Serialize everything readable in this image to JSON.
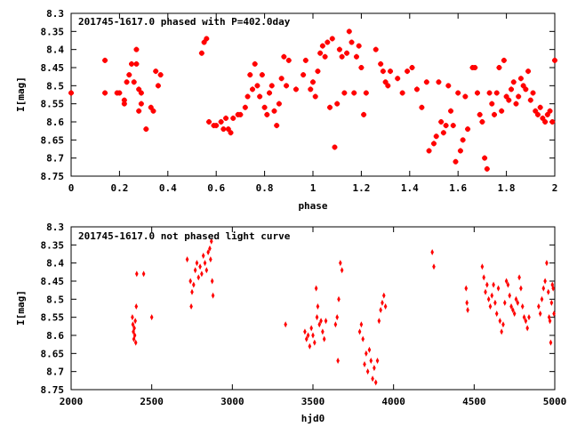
{
  "chart_data": [
    {
      "type": "scatter",
      "title": "201745-1617.0 phased with P=402.0day",
      "xlabel": "phase",
      "ylabel": "I[mag]",
      "xlim": [
        0,
        2
      ],
      "ylim": [
        8.75,
        8.3
      ],
      "y_inverted": true,
      "xticks": [
        "0",
        "0.2",
        "0.4",
        "0.6",
        "0.8",
        "1",
        "1.2",
        "1.4",
        "1.6",
        "1.8",
        "2"
      ],
      "yticks": [
        "8.3",
        "8.35",
        "8.4",
        "8.45",
        "8.5",
        "8.55",
        "8.6",
        "8.65",
        "8.7",
        "8.75"
      ],
      "marker_color": "#ff0000",
      "marker": "plus-bold",
      "points": [
        [
          0.0,
          8.52
        ],
        [
          0.14,
          8.43
        ],
        [
          0.14,
          8.52
        ],
        [
          0.19,
          8.52
        ],
        [
          0.2,
          8.52
        ],
        [
          0.22,
          8.55
        ],
        [
          0.22,
          8.54
        ],
        [
          0.23,
          8.49
        ],
        [
          0.24,
          8.47
        ],
        [
          0.25,
          8.44
        ],
        [
          0.26,
          8.49
        ],
        [
          0.27,
          8.44
        ],
        [
          0.27,
          8.4
        ],
        [
          0.28,
          8.51
        ],
        [
          0.28,
          8.57
        ],
        [
          0.29,
          8.52
        ],
        [
          0.29,
          8.55
        ],
        [
          0.31,
          8.62
        ],
        [
          0.33,
          8.56
        ],
        [
          0.34,
          8.57
        ],
        [
          0.35,
          8.46
        ],
        [
          0.36,
          8.5
        ],
        [
          0.37,
          8.47
        ],
        [
          0.54,
          8.41
        ],
        [
          0.55,
          8.38
        ],
        [
          0.56,
          8.37
        ],
        [
          0.57,
          8.6
        ],
        [
          0.59,
          8.61
        ],
        [
          0.6,
          8.61
        ],
        [
          0.62,
          8.6
        ],
        [
          0.63,
          8.62
        ],
        [
          0.64,
          8.59
        ],
        [
          0.65,
          8.62
        ],
        [
          0.66,
          8.63
        ],
        [
          0.67,
          8.59
        ],
        [
          0.69,
          8.58
        ],
        [
          0.7,
          8.58
        ],
        [
          0.72,
          8.56
        ],
        [
          0.73,
          8.53
        ],
        [
          0.74,
          8.47
        ],
        [
          0.75,
          8.51
        ],
        [
          0.76,
          8.44
        ],
        [
          0.77,
          8.5
        ],
        [
          0.78,
          8.53
        ],
        [
          0.79,
          8.47
        ],
        [
          0.8,
          8.56
        ],
        [
          0.81,
          8.58
        ],
        [
          0.82,
          8.52
        ],
        [
          0.83,
          8.5
        ],
        [
          0.84,
          8.57
        ],
        [
          0.85,
          8.61
        ],
        [
          0.86,
          8.55
        ],
        [
          0.87,
          8.48
        ],
        [
          0.88,
          8.42
        ],
        [
          0.89,
          8.5
        ],
        [
          0.9,
          8.43
        ],
        [
          0.93,
          8.51
        ],
        [
          0.96,
          8.47
        ],
        [
          0.97,
          8.43
        ],
        [
          0.99,
          8.51
        ],
        [
          1.0,
          8.49
        ],
        [
          1.01,
          8.53
        ],
        [
          1.02,
          8.46
        ],
        [
          1.03,
          8.41
        ],
        [
          1.04,
          8.39
        ],
        [
          1.05,
          8.42
        ],
        [
          1.06,
          8.38
        ],
        [
          1.07,
          8.56
        ],
        [
          1.08,
          8.37
        ],
        [
          1.09,
          8.67
        ],
        [
          1.1,
          8.55
        ],
        [
          1.11,
          8.4
        ],
        [
          1.12,
          8.42
        ],
        [
          1.13,
          8.52
        ],
        [
          1.14,
          8.41
        ],
        [
          1.15,
          8.35
        ],
        [
          1.16,
          8.38
        ],
        [
          1.17,
          8.52
        ],
        [
          1.18,
          8.42
        ],
        [
          1.19,
          8.39
        ],
        [
          1.2,
          8.45
        ],
        [
          1.21,
          8.58
        ],
        [
          1.22,
          8.52
        ],
        [
          1.26,
          8.4
        ],
        [
          1.28,
          8.44
        ],
        [
          1.29,
          8.46
        ],
        [
          1.3,
          8.49
        ],
        [
          1.31,
          8.5
        ],
        [
          1.32,
          8.46
        ],
        [
          1.35,
          8.48
        ],
        [
          1.37,
          8.52
        ],
        [
          1.39,
          8.46
        ],
        [
          1.41,
          8.45
        ],
        [
          1.43,
          8.51
        ],
        [
          1.45,
          8.56
        ],
        [
          1.47,
          8.49
        ],
        [
          1.48,
          8.68
        ],
        [
          1.5,
          8.66
        ],
        [
          1.51,
          8.64
        ],
        [
          1.52,
          8.49
        ],
        [
          1.53,
          8.6
        ],
        [
          1.54,
          8.63
        ],
        [
          1.55,
          8.61
        ],
        [
          1.56,
          8.5
        ],
        [
          1.57,
          8.57
        ],
        [
          1.58,
          8.61
        ],
        [
          1.59,
          8.71
        ],
        [
          1.6,
          8.52
        ],
        [
          1.61,
          8.68
        ],
        [
          1.62,
          8.65
        ],
        [
          1.63,
          8.53
        ],
        [
          1.64,
          8.62
        ],
        [
          1.66,
          8.45
        ],
        [
          1.67,
          8.45
        ],
        [
          1.68,
          8.52
        ],
        [
          1.69,
          8.58
        ],
        [
          1.7,
          8.6
        ],
        [
          1.71,
          8.7
        ],
        [
          1.72,
          8.73
        ],
        [
          1.73,
          8.52
        ],
        [
          1.74,
          8.55
        ],
        [
          1.75,
          8.58
        ],
        [
          1.76,
          8.52
        ],
        [
          1.77,
          8.45
        ],
        [
          1.78,
          8.57
        ],
        [
          1.79,
          8.43
        ],
        [
          1.8,
          8.53
        ],
        [
          1.81,
          8.54
        ],
        [
          1.82,
          8.51
        ],
        [
          1.83,
          8.49
        ],
        [
          1.84,
          8.55
        ],
        [
          1.85,
          8.53
        ],
        [
          1.86,
          8.48
        ],
        [
          1.87,
          8.5
        ],
        [
          1.88,
          8.51
        ],
        [
          1.89,
          8.46
        ],
        [
          1.9,
          8.54
        ],
        [
          1.91,
          8.52
        ],
        [
          1.92,
          8.57
        ],
        [
          1.93,
          8.58
        ],
        [
          1.94,
          8.56
        ],
        [
          1.95,
          8.59
        ],
        [
          1.96,
          8.6
        ],
        [
          1.97,
          8.58
        ],
        [
          1.98,
          8.57
        ],
        [
          1.99,
          8.6
        ],
        [
          2.0,
          8.43
        ]
      ]
    },
    {
      "type": "scatter",
      "title": "201745-1617.0 not phased light curve",
      "xlabel": "hjd0",
      "ylabel": "I[mag]",
      "xlim": [
        2000,
        5000
      ],
      "ylim": [
        8.75,
        8.3
      ],
      "y_inverted": true,
      "xticks": [
        "2000",
        "2500",
        "3000",
        "3500",
        "4000",
        "4500",
        "5000"
      ],
      "yticks": [
        "8.3",
        "8.35",
        "8.4",
        "8.45",
        "8.5",
        "8.55",
        "8.6",
        "8.65",
        "8.7",
        "8.75"
      ],
      "marker_color": "#ff0000",
      "marker": "diamond",
      "points": [
        [
          2380,
          8.55
        ],
        [
          2383,
          8.57
        ],
        [
          2386,
          8.59
        ],
        [
          2389,
          8.61
        ],
        [
          2392,
          8.58
        ],
        [
          2395,
          8.6
        ],
        [
          2398,
          8.56
        ],
        [
          2401,
          8.62
        ],
        [
          2404,
          8.52
        ],
        [
          2407,
          8.43
        ],
        [
          2450,
          8.43
        ],
        [
          2500,
          8.55
        ],
        [
          2720,
          8.39
        ],
        [
          2740,
          8.45
        ],
        [
          2745,
          8.52
        ],
        [
          2750,
          8.48
        ],
        [
          2760,
          8.46
        ],
        [
          2770,
          8.42
        ],
        [
          2780,
          8.4
        ],
        [
          2790,
          8.44
        ],
        [
          2800,
          8.41
        ],
        [
          2810,
          8.43
        ],
        [
          2820,
          8.38
        ],
        [
          2830,
          8.4
        ],
        [
          2840,
          8.42
        ],
        [
          2850,
          8.37
        ],
        [
          2860,
          8.36
        ],
        [
          2865,
          8.39
        ],
        [
          2870,
          8.34
        ],
        [
          2875,
          8.45
        ],
        [
          2880,
          8.49
        ],
        [
          3330,
          8.57
        ],
        [
          3450,
          8.59
        ],
        [
          3460,
          8.61
        ],
        [
          3470,
          8.6
        ],
        [
          3480,
          8.63
        ],
        [
          3490,
          8.58
        ],
        [
          3500,
          8.6
        ],
        [
          3510,
          8.62
        ],
        [
          3520,
          8.47
        ],
        [
          3525,
          8.55
        ],
        [
          3530,
          8.52
        ],
        [
          3540,
          8.57
        ],
        [
          3550,
          8.56
        ],
        [
          3560,
          8.59
        ],
        [
          3570,
          8.61
        ],
        [
          3580,
          8.56
        ],
        [
          3650,
          8.55
        ],
        [
          3660,
          8.5
        ],
        [
          3670,
          8.4
        ],
        [
          3680,
          8.42
        ],
        [
          3640,
          8.57
        ],
        [
          3655,
          8.67
        ],
        [
          3790,
          8.59
        ],
        [
          3800,
          8.57
        ],
        [
          3810,
          8.61
        ],
        [
          3820,
          8.68
        ],
        [
          3830,
          8.65
        ],
        [
          3840,
          8.7
        ],
        [
          3850,
          8.64
        ],
        [
          3860,
          8.67
        ],
        [
          3870,
          8.72
        ],
        [
          3880,
          8.69
        ],
        [
          3890,
          8.73
        ],
        [
          3900,
          8.67
        ],
        [
          3910,
          8.56
        ],
        [
          3920,
          8.53
        ],
        [
          3930,
          8.51
        ],
        [
          3940,
          8.49
        ],
        [
          3950,
          8.52
        ],
        [
          4240,
          8.37
        ],
        [
          4250,
          8.41
        ],
        [
          4450,
          8.47
        ],
        [
          4455,
          8.51
        ],
        [
          4460,
          8.53
        ],
        [
          4550,
          8.41
        ],
        [
          4560,
          8.44
        ],
        [
          4570,
          8.48
        ],
        [
          4580,
          8.46
        ],
        [
          4590,
          8.5
        ],
        [
          4600,
          8.52
        ],
        [
          4610,
          8.49
        ],
        [
          4620,
          8.46
        ],
        [
          4630,
          8.51
        ],
        [
          4640,
          8.54
        ],
        [
          4650,
          8.47
        ],
        [
          4660,
          8.56
        ],
        [
          4670,
          8.59
        ],
        [
          4680,
          8.57
        ],
        [
          4690,
          8.51
        ],
        [
          4700,
          8.45
        ],
        [
          4710,
          8.46
        ],
        [
          4720,
          8.49
        ],
        [
          4730,
          8.52
        ],
        [
          4740,
          8.53
        ],
        [
          4750,
          8.54
        ],
        [
          4760,
          8.5
        ],
        [
          4770,
          8.51
        ],
        [
          4780,
          8.44
        ],
        [
          4790,
          8.47
        ],
        [
          4800,
          8.52
        ],
        [
          4810,
          8.55
        ],
        [
          4820,
          8.56
        ],
        [
          4830,
          8.58
        ],
        [
          4840,
          8.55
        ],
        [
          4900,
          8.52
        ],
        [
          4910,
          8.54
        ],
        [
          4920,
          8.5
        ],
        [
          4930,
          8.47
        ],
        [
          4940,
          8.45
        ],
        [
          4950,
          8.4
        ],
        [
          4960,
          8.48
        ],
        [
          4965,
          8.55
        ],
        [
          4970,
          8.56
        ],
        [
          4975,
          8.62
        ],
        [
          4980,
          8.51
        ],
        [
          4985,
          8.46
        ],
        [
          4990,
          8.47
        ],
        [
          4995,
          8.54
        ]
      ]
    }
  ]
}
